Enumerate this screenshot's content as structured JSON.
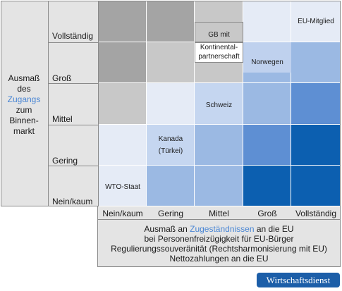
{
  "y_axis": {
    "label_pre": "Ausmaß des ",
    "label_highlight": "Zugangs",
    "label_post": " zum Binnen­markt",
    "rows": [
      "Vollständig",
      "Groß",
      "Mittel",
      "Gering",
      "Nein/kaum"
    ]
  },
  "x_axis": {
    "columns": [
      "Nein/kaum",
      "Gering",
      "Mittel",
      "Groß",
      "Vollständig"
    ],
    "line1_pre": "Ausmaß an ",
    "line1_highlight": "Zugeständnissen",
    "line1_post": " an die EU",
    "line2": "bei Personenfreizügigkeit für EU-Bürger",
    "line3": "Regulierungssouveränität (Rechtsharmonisierung mit EU)",
    "line4": "Nettozahlungen an die EU"
  },
  "matrix_colors": [
    [
      "#a4a4a4",
      "#a4a4a4",
      "#c8c8c8",
      "#e5ebf6",
      "#e5ebf6"
    ],
    [
      "#a4a4a4",
      "#c8c8c8",
      "#c8c8c8",
      "#9bb9e3",
      "#9bb9e3"
    ],
    [
      "#c8c8c8",
      "#e5ebf6",
      "#c5d6f0",
      "#9bb9e3",
      "#5e8fd3"
    ],
    [
      "#e5ebf6",
      "#c5d6f0",
      "#9bb9e3",
      "#5e8fd3",
      "#0c5fb0"
    ],
    [
      "#e5ebf6",
      "#9bb9e3",
      "#9bb9e3",
      "#0c5fb0",
      "#0c5fb0"
    ]
  ],
  "placements": {
    "eu": "EU-Mitglied",
    "gb": "GB mit",
    "kontinental": "Kontinental-\npartnerschaft",
    "norwegen": "Norwegen",
    "schweiz": "Schweiz",
    "kanada": "Kanada",
    "tuerkei": "(Türkei)",
    "wto": "WTO-Staat"
  },
  "brand": "Wirtschaftsdienst"
}
